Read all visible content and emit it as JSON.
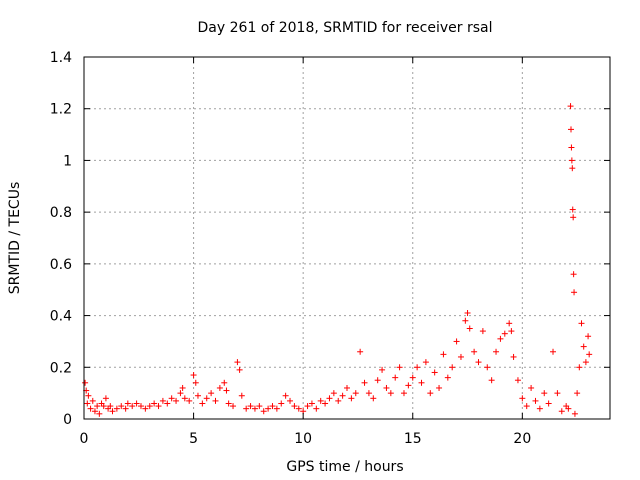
{
  "chart_data": {
    "type": "scatter",
    "title": "Day 261 of 2018, SRMTID for receiver rsal",
    "xlabel": "GPS time / hours",
    "ylabel": "SRMTID / TECUs",
    "xlim": [
      0,
      24
    ],
    "ylim": [
      0,
      1.4
    ],
    "x_ticks": [
      0,
      5,
      10,
      15,
      20
    ],
    "x_tick_labels": [
      "0",
      "5",
      "10",
      "15",
      "20"
    ],
    "y_ticks": [
      0,
      0.2,
      0.4,
      0.6,
      0.8,
      1,
      1.2,
      1.4
    ],
    "y_tick_labels": [
      "0",
      "0.2",
      "0.4",
      "0.6",
      "0.8",
      "1",
      "1.2",
      "1.4"
    ],
    "grid": true,
    "marker": "+",
    "series": [
      {
        "name": "SRMTID",
        "color": "#ff0000",
        "points": [
          [
            0.05,
            0.14
          ],
          [
            0.1,
            0.11
          ],
          [
            0.15,
            0.06
          ],
          [
            0.2,
            0.09
          ],
          [
            0.3,
            0.04
          ],
          [
            0.4,
            0.07
          ],
          [
            0.5,
            0.03
          ],
          [
            0.6,
            0.05
          ],
          [
            0.7,
            0.02
          ],
          [
            0.8,
            0.06
          ],
          [
            0.9,
            0.05
          ],
          [
            1.0,
            0.08
          ],
          [
            1.1,
            0.04
          ],
          [
            1.2,
            0.05
          ],
          [
            1.3,
            0.03
          ],
          [
            1.5,
            0.04
          ],
          [
            1.7,
            0.05
          ],
          [
            1.9,
            0.04
          ],
          [
            2.0,
            0.06
          ],
          [
            2.2,
            0.05
          ],
          [
            2.4,
            0.06
          ],
          [
            2.6,
            0.05
          ],
          [
            2.8,
            0.04
          ],
          [
            3.0,
            0.05
          ],
          [
            3.2,
            0.06
          ],
          [
            3.4,
            0.05
          ],
          [
            3.6,
            0.07
          ],
          [
            3.8,
            0.06
          ],
          [
            4.0,
            0.08
          ],
          [
            4.2,
            0.07
          ],
          [
            4.4,
            0.1
          ],
          [
            4.5,
            0.12
          ],
          [
            4.6,
            0.08
          ],
          [
            4.8,
            0.07
          ],
          [
            5.0,
            0.17
          ],
          [
            5.1,
            0.14
          ],
          [
            5.2,
            0.09
          ],
          [
            5.4,
            0.06
          ],
          [
            5.6,
            0.08
          ],
          [
            5.8,
            0.1
          ],
          [
            6.0,
            0.07
          ],
          [
            6.2,
            0.12
          ],
          [
            6.4,
            0.14
          ],
          [
            6.5,
            0.11
          ],
          [
            6.6,
            0.06
          ],
          [
            6.8,
            0.05
          ],
          [
            7.0,
            0.22
          ],
          [
            7.1,
            0.19
          ],
          [
            7.2,
            0.09
          ],
          [
            7.4,
            0.04
          ],
          [
            7.6,
            0.05
          ],
          [
            7.8,
            0.04
          ],
          [
            8.0,
            0.05
          ],
          [
            8.2,
            0.03
          ],
          [
            8.4,
            0.04
          ],
          [
            8.6,
            0.05
          ],
          [
            8.8,
            0.04
          ],
          [
            9.0,
            0.06
          ],
          [
            9.2,
            0.09
          ],
          [
            9.4,
            0.07
          ],
          [
            9.6,
            0.05
          ],
          [
            9.8,
            0.04
          ],
          [
            10.0,
            0.03
          ],
          [
            10.2,
            0.05
          ],
          [
            10.4,
            0.06
          ],
          [
            10.6,
            0.04
          ],
          [
            10.8,
            0.07
          ],
          [
            11.0,
            0.06
          ],
          [
            11.2,
            0.08
          ],
          [
            11.4,
            0.1
          ],
          [
            11.6,
            0.07
          ],
          [
            11.8,
            0.09
          ],
          [
            12.0,
            0.12
          ],
          [
            12.2,
            0.08
          ],
          [
            12.4,
            0.1
          ],
          [
            12.6,
            0.26
          ],
          [
            12.8,
            0.14
          ],
          [
            13.0,
            0.1
          ],
          [
            13.2,
            0.08
          ],
          [
            13.4,
            0.15
          ],
          [
            13.6,
            0.19
          ],
          [
            13.8,
            0.12
          ],
          [
            14.0,
            0.1
          ],
          [
            14.2,
            0.16
          ],
          [
            14.4,
            0.2
          ],
          [
            14.6,
            0.1
          ],
          [
            14.8,
            0.13
          ],
          [
            15.0,
            0.16
          ],
          [
            15.2,
            0.2
          ],
          [
            15.4,
            0.14
          ],
          [
            15.6,
            0.22
          ],
          [
            15.8,
            0.1
          ],
          [
            16.0,
            0.18
          ],
          [
            16.2,
            0.12
          ],
          [
            16.4,
            0.25
          ],
          [
            16.6,
            0.16
          ],
          [
            16.8,
            0.2
          ],
          [
            17.0,
            0.3
          ],
          [
            17.2,
            0.24
          ],
          [
            17.4,
            0.38
          ],
          [
            17.5,
            0.41
          ],
          [
            17.6,
            0.35
          ],
          [
            17.8,
            0.26
          ],
          [
            18.0,
            0.22
          ],
          [
            18.2,
            0.34
          ],
          [
            18.4,
            0.2
          ],
          [
            18.6,
            0.15
          ],
          [
            18.8,
            0.26
          ],
          [
            19.0,
            0.31
          ],
          [
            19.2,
            0.33
          ],
          [
            19.4,
            0.37
          ],
          [
            19.5,
            0.34
          ],
          [
            19.6,
            0.24
          ],
          [
            19.8,
            0.15
          ],
          [
            20.0,
            0.08
          ],
          [
            20.2,
            0.05
          ],
          [
            20.4,
            0.12
          ],
          [
            20.6,
            0.07
          ],
          [
            20.8,
            0.04
          ],
          [
            21.0,
            0.1
          ],
          [
            21.2,
            0.06
          ],
          [
            21.4,
            0.26
          ],
          [
            21.6,
            0.1
          ],
          [
            21.8,
            0.03
          ],
          [
            22.0,
            0.05
          ],
          [
            22.1,
            0.04
          ],
          [
            22.2,
            1.21
          ],
          [
            22.22,
            1.12
          ],
          [
            22.24,
            1.05
          ],
          [
            22.26,
            1.0
          ],
          [
            22.28,
            0.97
          ],
          [
            22.3,
            0.81
          ],
          [
            22.32,
            0.78
          ],
          [
            22.34,
            0.56
          ],
          [
            22.36,
            0.49
          ],
          [
            22.4,
            0.02
          ],
          [
            22.5,
            0.1
          ],
          [
            22.6,
            0.2
          ],
          [
            22.7,
            0.37
          ],
          [
            22.8,
            0.28
          ],
          [
            22.9,
            0.22
          ],
          [
            23.0,
            0.32
          ],
          [
            23.05,
            0.25
          ]
        ]
      }
    ]
  }
}
